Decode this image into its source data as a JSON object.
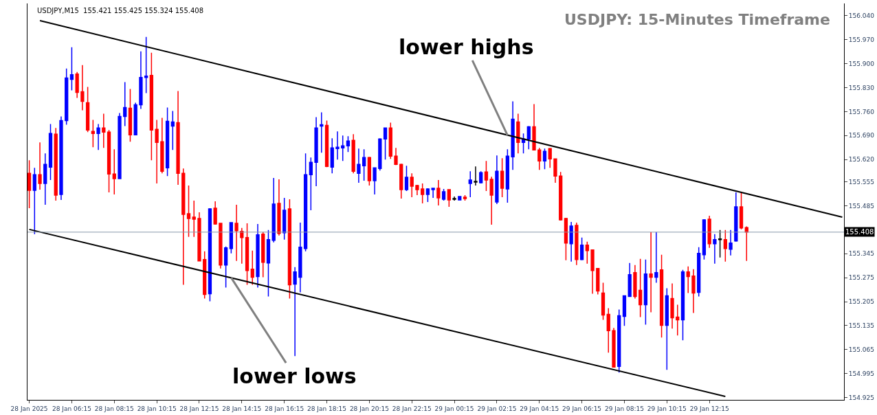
{
  "chart_data": {
    "type": "candlestick",
    "title": "USDJPY: 15-Minutes Timeframe",
    "annotations": [
      "USDJPY,M15  155.421 155.425 155.324 155.408",
      {
        "text": "lower highs",
        "x": "2025-01-29T02:45",
        "y": 155.691
      },
      {
        "text": "lower lows",
        "x": "2025-01-28T13:45",
        "y": 155.275
      }
    ],
    "colors": [
      "#ff0000",
      "#0000ff",
      "#ff0000",
      "#0000ff",
      "#0000ff",
      "#ff0000",
      "#0000ff",
      "#0000ff",
      "#0000ff",
      "#ff0000",
      "#ff0000",
      "#ff0000",
      "#ff0000",
      "#0000ff",
      "#ff0000",
      "#ff0000",
      "#ff0000",
      "#0000ff",
      "#0000ff",
      "#ff0000",
      "#0000ff",
      "#0000ff",
      "#0000ff",
      "#ff0000",
      "#ff0000",
      "#ff0000",
      "#0000ff",
      "#0000ff",
      "#ff0000",
      "#ff0000",
      "#ff0000",
      "#ff0000",
      "#ff0000",
      "#ff0000",
      "#0000ff",
      "#ff0000",
      "#ff0000",
      "#0000ff",
      "#0000ff",
      "#ff0000",
      "#ff0000",
      "#ff0000",
      "#ff0000",
      "#0000ff",
      "#ff0000",
      "#0000ff",
      "#0000ff",
      "#ff0000",
      "#0000ff",
      "#ff0000",
      "#0000ff",
      "#0000ff",
      "#0000ff",
      "#0000ff",
      "#0000ff",
      "#0000ff",
      "#ff0000",
      "#0000ff",
      "#0000ff",
      "#0000ff",
      "#0000ff",
      "#ff0000",
      "#0000ff",
      "#0000ff",
      "#ff0000",
      "#0000ff",
      "#0000ff",
      "#0000ff",
      "#ff0000",
      "#ff0000",
      "#ff0000",
      "#0000ff",
      "#ff0000",
      "#ff0000",
      "#ff0000",
      "#0000ff",
      "#0000ff",
      "#ff0000",
      "#0000ff",
      "#ff0000",
      "#000000",
      "#0000ff",
      "#ff0000",
      "#0000ff",
      "#000000",
      "#0000ff",
      "#ff0000",
      "#ff0000",
      "#0000ff",
      "#ff0000",
      "#0000ff",
      "#0000ff",
      "#ff0000",
      "#0000ff",
      "#0000ff",
      "#ff0000",
      "#ff0000",
      "#0000ff",
      "#ff0000",
      "#ff0000",
      "#ff0000",
      "#ff0000",
      "#0000ff",
      "#ff0000",
      "#0000ff",
      "#ff0000",
      "#ff0000",
      "#ff0000",
      "#ff0000",
      "#ff0000",
      "#ff0000",
      "#0000ff",
      "#0000ff",
      "#0000ff",
      "#ff0000",
      "#ff0000",
      "#0000ff",
      "#ff0000",
      "#0000ff",
      "#ff0000",
      "#0000ff",
      "#ff0000",
      "#ff0000",
      "#0000ff",
      "#ff0000",
      "#ff0000",
      "#0000ff",
      "#0000ff",
      "#ff0000",
      "#0000ff",
      "#000000",
      "#ff0000",
      "#0000ff",
      "#0000ff",
      "#ff0000",
      "#ff0000"
    ],
    "x": [
      "2025-01-28T04:15",
      "2025-01-28T04:30",
      "2025-01-28T04:45",
      "2025-01-28T05:00",
      "2025-01-28T05:15",
      "2025-01-28T05:30",
      "2025-01-28T05:45",
      "2025-01-28T06:00",
      "2025-01-28T06:15",
      "2025-01-28T06:30",
      "2025-01-28T06:45",
      "2025-01-28T07:00",
      "2025-01-28T07:15",
      "2025-01-28T07:30",
      "2025-01-28T07:45",
      "2025-01-28T08:00",
      "2025-01-28T08:15",
      "2025-01-28T08:30",
      "2025-01-28T08:45",
      "2025-01-28T09:00",
      "2025-01-28T09:15",
      "2025-01-28T09:30",
      "2025-01-28T09:45",
      "2025-01-28T10:00",
      "2025-01-28T10:15",
      "2025-01-28T10:30",
      "2025-01-28T10:45",
      "2025-01-28T11:00",
      "2025-01-28T11:15",
      "2025-01-28T11:30",
      "2025-01-28T11:45",
      "2025-01-28T12:00",
      "2025-01-28T12:15",
      "2025-01-28T12:30",
      "2025-01-28T12:45",
      "2025-01-28T13:00",
      "2025-01-28T13:15",
      "2025-01-28T13:30",
      "2025-01-28T13:45",
      "2025-01-28T14:00",
      "2025-01-28T14:15",
      "2025-01-28T14:30",
      "2025-01-28T14:45",
      "2025-01-28T15:00",
      "2025-01-28T15:15",
      "2025-01-28T15:30",
      "2025-01-28T15:45",
      "2025-01-28T16:00",
      "2025-01-28T16:15",
      "2025-01-28T16:30",
      "2025-01-28T16:45",
      "2025-01-28T17:00",
      "2025-01-28T17:15",
      "2025-01-28T17:30",
      "2025-01-28T17:45",
      "2025-01-28T18:00",
      "2025-01-28T18:15",
      "2025-01-28T18:30",
      "2025-01-28T18:45",
      "2025-01-28T19:00",
      "2025-01-28T19:15",
      "2025-01-28T19:30",
      "2025-01-28T19:45",
      "2025-01-28T20:00",
      "2025-01-28T20:15",
      "2025-01-28T20:30",
      "2025-01-28T20:45",
      "2025-01-28T21:00",
      "2025-01-28T21:15",
      "2025-01-28T21:30",
      "2025-01-28T21:45",
      "2025-01-28T22:00",
      "2025-01-28T22:15",
      "2025-01-28T22:30",
      "2025-01-28T22:45",
      "2025-01-28T23:00",
      "2025-01-28T23:15",
      "2025-01-28T23:30",
      "2025-01-28T23:45",
      "2025-01-29T00:00",
      "2025-01-29T00:15",
      "2025-01-29T00:30",
      "2025-01-29T00:45",
      "2025-01-29T01:00",
      "2025-01-29T01:15",
      "2025-01-29T01:30",
      "2025-01-29T01:45",
      "2025-01-29T02:00",
      "2025-01-29T02:15",
      "2025-01-29T02:30",
      "2025-01-29T02:45",
      "2025-01-29T03:00",
      "2025-01-29T03:15",
      "2025-01-29T03:30",
      "2025-01-29T03:45",
      "2025-01-29T04:00",
      "2025-01-29T04:15",
      "2025-01-29T04:30",
      "2025-01-29T04:45",
      "2025-01-29T05:00",
      "2025-01-29T05:15",
      "2025-01-29T05:30",
      "2025-01-29T05:45",
      "2025-01-29T06:00",
      "2025-01-29T06:15",
      "2025-01-29T06:30",
      "2025-01-29T06:45",
      "2025-01-29T07:00",
      "2025-01-29T07:15",
      "2025-01-29T07:30",
      "2025-01-29T07:45",
      "2025-01-29T08:00",
      "2025-01-29T08:15",
      "2025-01-29T08:30",
      "2025-01-29T08:45",
      "2025-01-29T09:00",
      "2025-01-29T09:15",
      "2025-01-29T09:30",
      "2025-01-29T09:45",
      "2025-01-29T10:00",
      "2025-01-29T10:15",
      "2025-01-29T10:30",
      "2025-01-29T10:45",
      "2025-01-29T11:00",
      "2025-01-29T11:15",
      "2025-01-29T11:30",
      "2025-01-29T11:45",
      "2025-01-29T12:00",
      "2025-01-29T12:15",
      "2025-01-29T12:30",
      "2025-01-29T12:45",
      "2025-01-29T13:00",
      "2025-01-29T13:15",
      "2025-01-29T13:30",
      "2025-01-29T13:45",
      "2025-01-29T14:00"
    ],
    "ohlc": [
      [
        155.58,
        155.618,
        155.478,
        155.53
      ],
      [
        155.53,
        155.596,
        155.402,
        155.576
      ],
      [
        155.576,
        155.67,
        155.532,
        155.55
      ],
      [
        155.55,
        155.638,
        155.488,
        155.606
      ],
      [
        155.598,
        155.724,
        155.56,
        155.696
      ],
      [
        155.694,
        155.712,
        155.5,
        155.516
      ],
      [
        155.518,
        155.746,
        155.502,
        155.734
      ],
      [
        155.734,
        155.886,
        155.722,
        155.858
      ],
      [
        155.854,
        155.948,
        155.822,
        155.868
      ],
      [
        155.87,
        155.876,
        155.8,
        155.816
      ],
      [
        155.818,
        155.896,
        155.764,
        155.79
      ],
      [
        155.786,
        155.832,
        155.7,
        155.706
      ],
      [
        155.702,
        155.736,
        155.656,
        155.696
      ],
      [
        155.696,
        155.724,
        155.648,
        155.712
      ],
      [
        155.712,
        155.754,
        155.654,
        155.7
      ],
      [
        155.7,
        155.706,
        155.524,
        155.578
      ],
      [
        155.578,
        155.65,
        155.518,
        155.564
      ],
      [
        155.564,
        155.756,
        155.564,
        155.746
      ],
      [
        155.746,
        155.846,
        155.718,
        155.772
      ],
      [
        155.77,
        155.826,
        155.672,
        155.692
      ],
      [
        155.692,
        155.786,
        155.692,
        155.78
      ],
      [
        155.78,
        155.936,
        155.768,
        155.86
      ],
      [
        155.86,
        155.978,
        155.814,
        155.864
      ],
      [
        155.866,
        155.932,
        155.618,
        155.706
      ],
      [
        155.708,
        155.736,
        155.55,
        155.67
      ],
      [
        155.672,
        155.742,
        155.58,
        155.586
      ],
      [
        155.596,
        155.772,
        155.572,
        155.732
      ],
      [
        155.718,
        155.762,
        155.648,
        155.73
      ],
      [
        155.728,
        155.82,
        155.546,
        155.58
      ],
      [
        155.58,
        155.594,
        155.254,
        155.46
      ],
      [
        155.462,
        155.544,
        155.394,
        155.448
      ],
      [
        155.452,
        155.5,
        155.394,
        155.446
      ],
      [
        155.448,
        155.466,
        155.324,
        155.324
      ],
      [
        155.328,
        155.352,
        155.214,
        155.226
      ],
      [
        155.228,
        155.478,
        155.206,
        155.476
      ],
      [
        155.478,
        155.498,
        155.43,
        155.432
      ],
      [
        155.434,
        155.434,
        155.302,
        155.312
      ],
      [
        155.312,
        155.366,
        155.246,
        155.362
      ],
      [
        155.36,
        155.436,
        155.346,
        155.436
      ],
      [
        155.434,
        155.488,
        155.324,
        155.412
      ],
      [
        155.41,
        155.42,
        155.316,
        155.392
      ],
      [
        155.392,
        155.434,
        155.254,
        155.296
      ],
      [
        155.3,
        155.354,
        155.254,
        155.276
      ],
      [
        155.278,
        155.432,
        155.246,
        155.4
      ],
      [
        155.402,
        155.408,
        155.276,
        155.32
      ],
      [
        155.318,
        155.414,
        155.22,
        155.386
      ],
      [
        155.384,
        155.566,
        155.378,
        155.49
      ],
      [
        155.492,
        155.562,
        155.398,
        155.404
      ],
      [
        155.406,
        155.508,
        155.386,
        155.472
      ],
      [
        155.476,
        155.504,
        155.214,
        155.254
      ],
      [
        155.256,
        155.306,
        155.046,
        155.292
      ],
      [
        155.276,
        155.436,
        155.232,
        155.364
      ],
      [
        155.36,
        155.638,
        155.352,
        155.576
      ],
      [
        155.576,
        155.626,
        155.472,
        155.612
      ],
      [
        155.612,
        155.744,
        155.542,
        155.712
      ],
      [
        155.718,
        155.758,
        155.64,
        155.722
      ],
      [
        155.72,
        155.734,
        155.598,
        155.6
      ],
      [
        155.598,
        155.682,
        155.58,
        155.654
      ],
      [
        155.652,
        155.702,
        155.62,
        155.656
      ],
      [
        155.654,
        155.69,
        155.616,
        155.66
      ],
      [
        155.66,
        155.688,
        155.642,
        155.674
      ],
      [
        155.676,
        155.694,
        155.58,
        155.586
      ],
      [
        155.58,
        155.652,
        155.552,
        155.606
      ],
      [
        155.602,
        155.65,
        155.558,
        155.626
      ],
      [
        155.626,
        155.628,
        155.544,
        155.558
      ],
      [
        155.558,
        155.596,
        155.518,
        155.596
      ],
      [
        155.594,
        155.682,
        155.588,
        155.68
      ],
      [
        155.68,
        155.712,
        155.62,
        155.712
      ],
      [
        155.712,
        155.728,
        155.622,
        155.63
      ],
      [
        155.63,
        155.654,
        155.604,
        155.606
      ],
      [
        155.606,
        155.608,
        155.506,
        155.532
      ],
      [
        155.532,
        155.602,
        155.528,
        155.568
      ],
      [
        155.568,
        155.58,
        155.51,
        155.542
      ],
      [
        155.544,
        155.546,
        155.516,
        155.532
      ],
      [
        155.534,
        155.55,
        155.492,
        155.518
      ],
      [
        155.518,
        155.536,
        155.496,
        155.534
      ],
      [
        155.532,
        155.536,
        155.508,
        155.536
      ],
      [
        155.536,
        155.56,
        155.486,
        155.508
      ],
      [
        155.504,
        155.534,
        155.5,
        155.526
      ],
      [
        155.532,
        155.532,
        155.482,
        155.502
      ],
      [
        155.504,
        155.512,
        155.5,
        155.506
      ],
      [
        155.502,
        155.512,
        155.502,
        155.512
      ],
      [
        155.51,
        155.516,
        155.5,
        155.506
      ],
      [
        155.55,
        155.586,
        155.51,
        155.56
      ],
      [
        155.554,
        155.6,
        155.544,
        155.556
      ],
      [
        155.552,
        155.586,
        155.55,
        155.582
      ],
      [
        155.584,
        155.616,
        155.528,
        155.56
      ],
      [
        155.562,
        155.57,
        155.43,
        155.516
      ],
      [
        155.496,
        155.632,
        155.49,
        155.586
      ],
      [
        155.586,
        155.624,
        155.51,
        155.536
      ],
      [
        155.534,
        155.65,
        155.494,
        155.63
      ],
      [
        155.628,
        155.79,
        155.59,
        155.738
      ],
      [
        155.73,
        155.754,
        155.638,
        155.67
      ],
      [
        155.67,
        155.696,
        155.638,
        155.68
      ],
      [
        155.68,
        155.718,
        155.65,
        155.716
      ],
      [
        155.716,
        155.782,
        155.648,
        155.648
      ],
      [
        155.648,
        155.654,
        155.59,
        155.616
      ],
      [
        155.616,
        155.652,
        155.592,
        155.644
      ],
      [
        155.652,
        155.654,
        155.596,
        155.622
      ],
      [
        155.622,
        155.622,
        155.552,
        155.572
      ],
      [
        155.572,
        155.584,
        155.442,
        155.444
      ],
      [
        155.448,
        155.45,
        155.326,
        155.376
      ],
      [
        155.374,
        155.438,
        155.322,
        155.426
      ],
      [
        155.428,
        155.436,
        155.312,
        155.328
      ],
      [
        155.328,
        155.392,
        155.326,
        155.37
      ],
      [
        155.37,
        155.38,
        155.316,
        155.354
      ],
      [
        155.356,
        155.356,
        155.228,
        155.296
      ],
      [
        155.302,
        155.302,
        155.226,
        155.236
      ],
      [
        155.23,
        155.26,
        155.152,
        155.166
      ],
      [
        155.168,
        155.186,
        155.056,
        155.12
      ],
      [
        155.12,
        155.128,
        155.014,
        155.014
      ],
      [
        155.016,
        155.182,
        154.998,
        155.164
      ],
      [
        155.162,
        155.222,
        155.134,
        155.222
      ],
      [
        155.22,
        155.318,
        155.22,
        155.284
      ],
      [
        155.29,
        155.312,
        155.214,
        155.22
      ],
      [
        155.238,
        155.33,
        155.16,
        155.196
      ],
      [
        155.196,
        155.328,
        155.138,
        155.286
      ],
      [
        155.286,
        155.408,
        155.174,
        155.276
      ],
      [
        155.276,
        155.408,
        155.26,
        155.29
      ],
      [
        155.298,
        155.342,
        155.1,
        155.136
      ],
      [
        155.136,
        155.244,
        155.006,
        155.222
      ],
      [
        155.214,
        155.258,
        155.126,
        155.158
      ],
      [
        155.16,
        155.196,
        155.106,
        155.152
      ],
      [
        155.152,
        155.298,
        155.092,
        155.292
      ],
      [
        155.292,
        155.308,
        155.23,
        155.278
      ],
      [
        155.28,
        155.3,
        155.172,
        155.23
      ],
      [
        155.232,
        155.364,
        155.22,
        155.346
      ],
      [
        155.342,
        155.446,
        155.328,
        155.444
      ],
      [
        155.446,
        155.456,
        155.362,
        155.374
      ],
      [
        155.374,
        155.402,
        155.316,
        155.386
      ],
      [
        155.386,
        155.414,
        155.334,
        155.388
      ],
      [
        155.386,
        155.414,
        155.322,
        155.36
      ],
      [
        155.358,
        155.414,
        155.34,
        155.376
      ],
      [
        155.382,
        155.524,
        155.38,
        155.482
      ],
      [
        155.482,
        155.524,
        155.416,
        155.42
      ],
      [
        155.421,
        155.425,
        155.324,
        155.408
      ]
    ],
    "series": [
      {
        "type": "line",
        "color": "#000000",
        "x": [
          "2025-01-28T04:45",
          "2025-01-29T18:30"
        ],
        "values": [
          156.026,
          155.452
        ]
      },
      {
        "type": "line",
        "color": "#000000",
        "x": [
          "2025-01-28T04:15",
          "2025-01-29T13:00"
        ],
        "values": [
          155.416,
          154.928
        ]
      }
    ],
    "ref_lines": [
      {
        "axis": "y",
        "value": 155.408,
        "label": "155.408",
        "color": "#8899aa"
      }
    ],
    "xlim": [
      "2025-01-28T04:10",
      "2025-01-29T18:35"
    ],
    "xticks": [
      {
        "value": "2025-01-28T04:15",
        "label": "28 Jan 2025"
      },
      {
        "value": "2025-01-28T06:15",
        "label": "28 Jan 06:15"
      },
      {
        "value": "2025-01-28T08:15",
        "label": "28 Jan 08:15"
      },
      {
        "value": "2025-01-28T10:15",
        "label": "28 Jan 10:15"
      },
      {
        "value": "2025-01-28T12:15",
        "label": "28 Jan 12:15"
      },
      {
        "value": "2025-01-28T14:15",
        "label": "28 Jan 14:15"
      },
      {
        "value": "2025-01-28T16:15",
        "label": "28 Jan 16:15"
      },
      {
        "value": "2025-01-28T18:15",
        "label": "28 Jan 18:15"
      },
      {
        "value": "2025-01-28T20:15",
        "label": "28 Jan 20:15"
      },
      {
        "value": "2025-01-28T22:15",
        "label": "28 Jan 22:15"
      },
      {
        "value": "2025-01-29T00:15",
        "label": "29 Jan 00:15"
      },
      {
        "value": "2025-01-29T02:15",
        "label": "29 Jan 02:15"
      },
      {
        "value": "2025-01-29T04:15",
        "label": "29 Jan 04:15"
      },
      {
        "value": "2025-01-29T06:15",
        "label": "29 Jan 06:15"
      },
      {
        "value": "2025-01-29T08:15",
        "label": "29 Jan 08:15"
      },
      {
        "value": "2025-01-29T10:15",
        "label": "29 Jan 10:15"
      },
      {
        "value": "2025-01-29T12:15",
        "label": "29 Jan 12:15"
      }
    ],
    "ylim": [
      154.918,
      156.076
    ],
    "yticks": [
      154.925,
      154.995,
      155.065,
      155.135,
      155.205,
      155.275,
      155.345,
      155.485,
      155.555,
      {
        "value": 155.62,
        "label": "155.620"
      },
      {
        "value": 155.69,
        "label": "155.690"
      },
      {
        "value": 155.76,
        "label": "155.760"
      },
      {
        "value": 155.83,
        "label": "155.830"
      },
      {
        "value": 155.9,
        "label": "155.900"
      },
      {
        "value": 155.97,
        "label": "155.970"
      },
      {
        "value": 156.04,
        "label": "156.040"
      }
    ]
  }
}
